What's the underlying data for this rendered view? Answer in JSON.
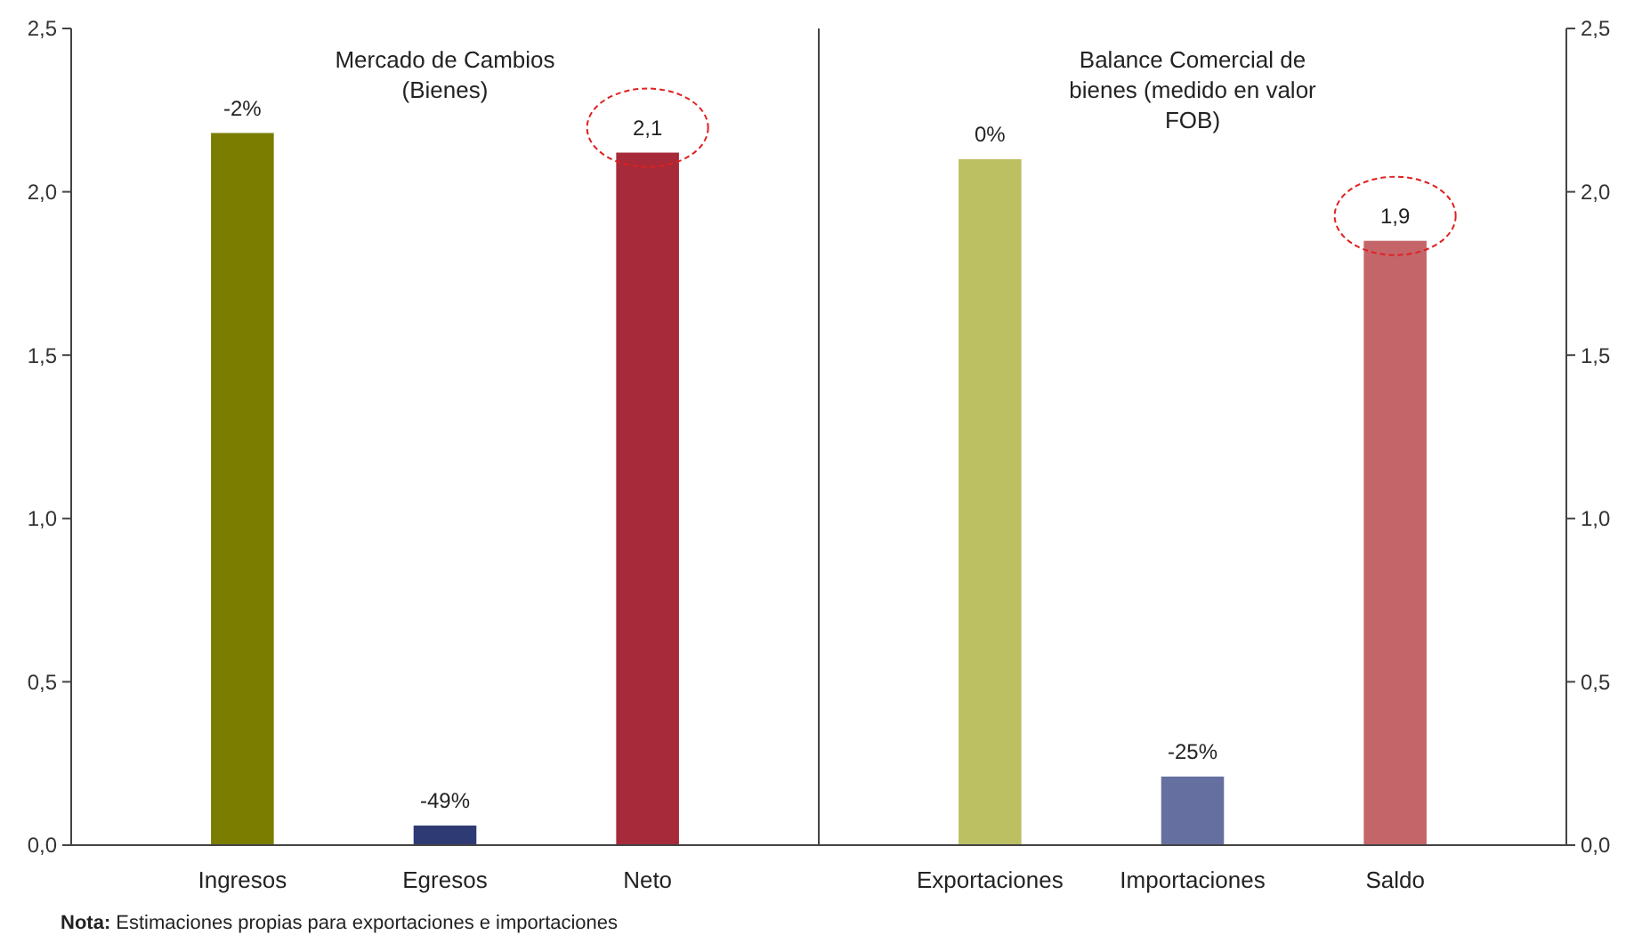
{
  "chart_data": [
    {
      "type": "bar",
      "title": "Mercado de Cambios\n(Bienes)",
      "categories": [
        "Ingresos",
        "Egresos",
        "Neto"
      ],
      "values": [
        2.18,
        0.06,
        2.12
      ],
      "colors": [
        "#7a7d00",
        "#2e3a73",
        "#a62a3a"
      ],
      "value_labels": [
        null,
        null,
        "2,1"
      ],
      "ylim": [
        0,
        2.5
      ],
      "yticks": [
        {
          "value": 0,
          "label": "0,0"
        },
        {
          "value": 0.5,
          "label": "0,5"
        },
        {
          "value": 1,
          "label": "1,0"
        },
        {
          "value": 1.5,
          "label": "1,5"
        },
        {
          "value": 2,
          "label": "2,0"
        },
        {
          "value": 2.5,
          "label": "2,5"
        }
      ],
      "annotations": [
        {
          "text": "-2%",
          "x": "Ingresos",
          "y": 2.18
        },
        {
          "text": "-49%",
          "x": "Egresos",
          "y": 0.06
        },
        "Nota: Estimaciones propias para exportaciones e importaciones"
      ]
    },
    {
      "type": "bar",
      "title": "Balance Comercial de\nbienes (medido en valor\nFOB)",
      "categories": [
        "Exportaciones",
        "Importaciones",
        "Saldo"
      ],
      "values": [
        2.1,
        0.21,
        1.85
      ],
      "colors": [
        "#bcbf62",
        "#6670a0",
        "#c46569"
      ],
      "value_labels": [
        null,
        null,
        "1,9"
      ],
      "ylim": [
        0,
        2.5
      ],
      "yticks": [
        {
          "value": 0,
          "label": "0,0"
        },
        {
          "value": 0.5,
          "label": "0,5"
        },
        {
          "value": 1,
          "label": "1,0"
        },
        {
          "value": 1.5,
          "label": "1,5"
        },
        {
          "value": 2,
          "label": "2,0"
        },
        {
          "value": 2.5,
          "label": "2,5"
        }
      ],
      "annotations": [
        {
          "text": "0%",
          "x": "Exportaciones",
          "y": 2.1
        },
        {
          "text": "-25%",
          "x": "Importaciones",
          "y": 0.21
        }
      ]
    }
  ]
}
